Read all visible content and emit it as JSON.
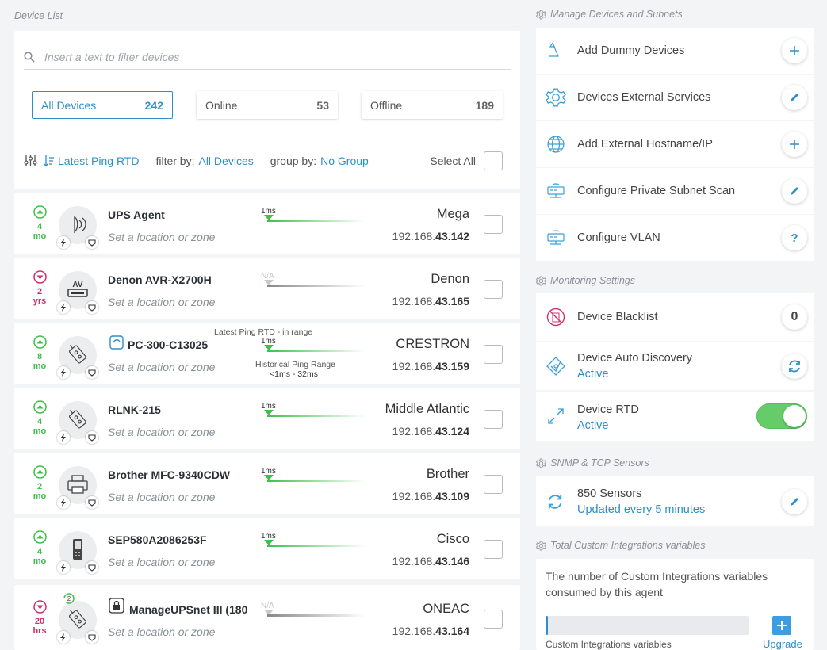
{
  "device_list": {
    "title": "Device List",
    "search_placeholder": "Insert a text to filter devices",
    "tabs": [
      {
        "label": "All Devices",
        "count": "242"
      },
      {
        "label": "Online",
        "count": "53"
      },
      {
        "label": "Offline",
        "count": "189"
      }
    ],
    "toolbar": {
      "sort_label": "Latest Ping RTD",
      "filter_prefix": "filter by:",
      "filter_value": "All Devices",
      "group_prefix": "group by:",
      "group_value": "No Group",
      "select_all": "Select All"
    },
    "location_placeholder": "Set a location or zone",
    "ping_in_range_label": "Latest Ping RTD - in range",
    "ping_hist_label": "Historical Ping Range",
    "ping_hist_value": "<1ms - 32ms",
    "devices": [
      {
        "name": "UPS Agent",
        "status": "up",
        "age_num": "4",
        "age_unit": "mo",
        "ping": "1ms",
        "manufacturer": "Mega",
        "ip_prefix": "192.168.",
        "ip_suffix": "43.142",
        "icon": "ups-icon"
      },
      {
        "name": "Denon AVR-X2700H",
        "status": "down",
        "age_num": "2",
        "age_unit": "yrs",
        "ping": "N/A",
        "manufacturer": "Denon",
        "ip_prefix": "192.168.",
        "ip_suffix": "43.165",
        "icon": "av-receiver-icon"
      },
      {
        "name": "PC-300-C13025",
        "status": "up",
        "age_num": "8",
        "age_unit": "mo",
        "ping": "1ms",
        "manufacturer": "CRESTRON",
        "ip_prefix": "192.168.",
        "ip_suffix": "43.159",
        "icon": "network-device-icon"
      },
      {
        "name": "RLNK-215",
        "status": "up",
        "age_num": "4",
        "age_unit": "mo",
        "ping": "1ms",
        "manufacturer": "Middle Atlantic",
        "ip_prefix": "192.168.",
        "ip_suffix": "43.124",
        "icon": "network-device-icon"
      },
      {
        "name": "Brother MFC-9340CDW",
        "status": "up",
        "age_num": "2",
        "age_unit": "mo",
        "ping": "1ms",
        "manufacturer": "Brother",
        "ip_prefix": "192.168.",
        "ip_suffix": "43.109",
        "icon": "printer-icon"
      },
      {
        "name": "SEP580A2086253F",
        "status": "up",
        "age_num": "4",
        "age_unit": "mo",
        "ping": "1ms",
        "manufacturer": "Cisco",
        "ip_prefix": "192.168.",
        "ip_suffix": "43.146",
        "icon": "phone-icon"
      },
      {
        "name": "ManageUPSnet III (180",
        "status": "down",
        "age_num": "20",
        "age_unit": "hrs",
        "ping": "N/A",
        "manufacturer": "ONEAC",
        "ip_prefix": "192.168.",
        "ip_suffix": "43.164",
        "icon": "network-device-icon",
        "sync_badge": "2"
      }
    ]
  },
  "manage": {
    "title": "Manage Devices and Subnets",
    "items": [
      {
        "label": "Add Dummy Devices",
        "action": "+"
      },
      {
        "label": "Devices External Services",
        "action": "edit"
      },
      {
        "label": "Add External Hostname/IP",
        "action": "+"
      },
      {
        "label": "Configure Private Subnet Scan",
        "action": "edit"
      },
      {
        "label": "Configure VLAN",
        "action": "?"
      }
    ]
  },
  "monitoring": {
    "title": "Monitoring Settings",
    "blacklist_label": "Device Blacklist",
    "blacklist_count": "0",
    "auto_discovery_label": "Device Auto Discovery",
    "auto_discovery_status": "Active",
    "rtd_label": "Device RTD",
    "rtd_status": "Active",
    "rtd_enabled": true
  },
  "snmp": {
    "title": "SNMP & TCP Sensors",
    "sensors_label": "850 Sensors",
    "sensors_sub": "Updated every 5 minutes"
  },
  "custom_integrations": {
    "title": "Total Custom Integrations variables",
    "description": "The number of Custom Integrations variables consumed by this agent",
    "bar_label": "Custom Integrations variables",
    "usage_fraction": 0.01,
    "upgrade_label": "Upgrade"
  },
  "colors": {
    "accent": "#2e8fc6",
    "online": "#3fbf4b",
    "offline": "#d0306a",
    "toggle": "#66cc6a"
  }
}
